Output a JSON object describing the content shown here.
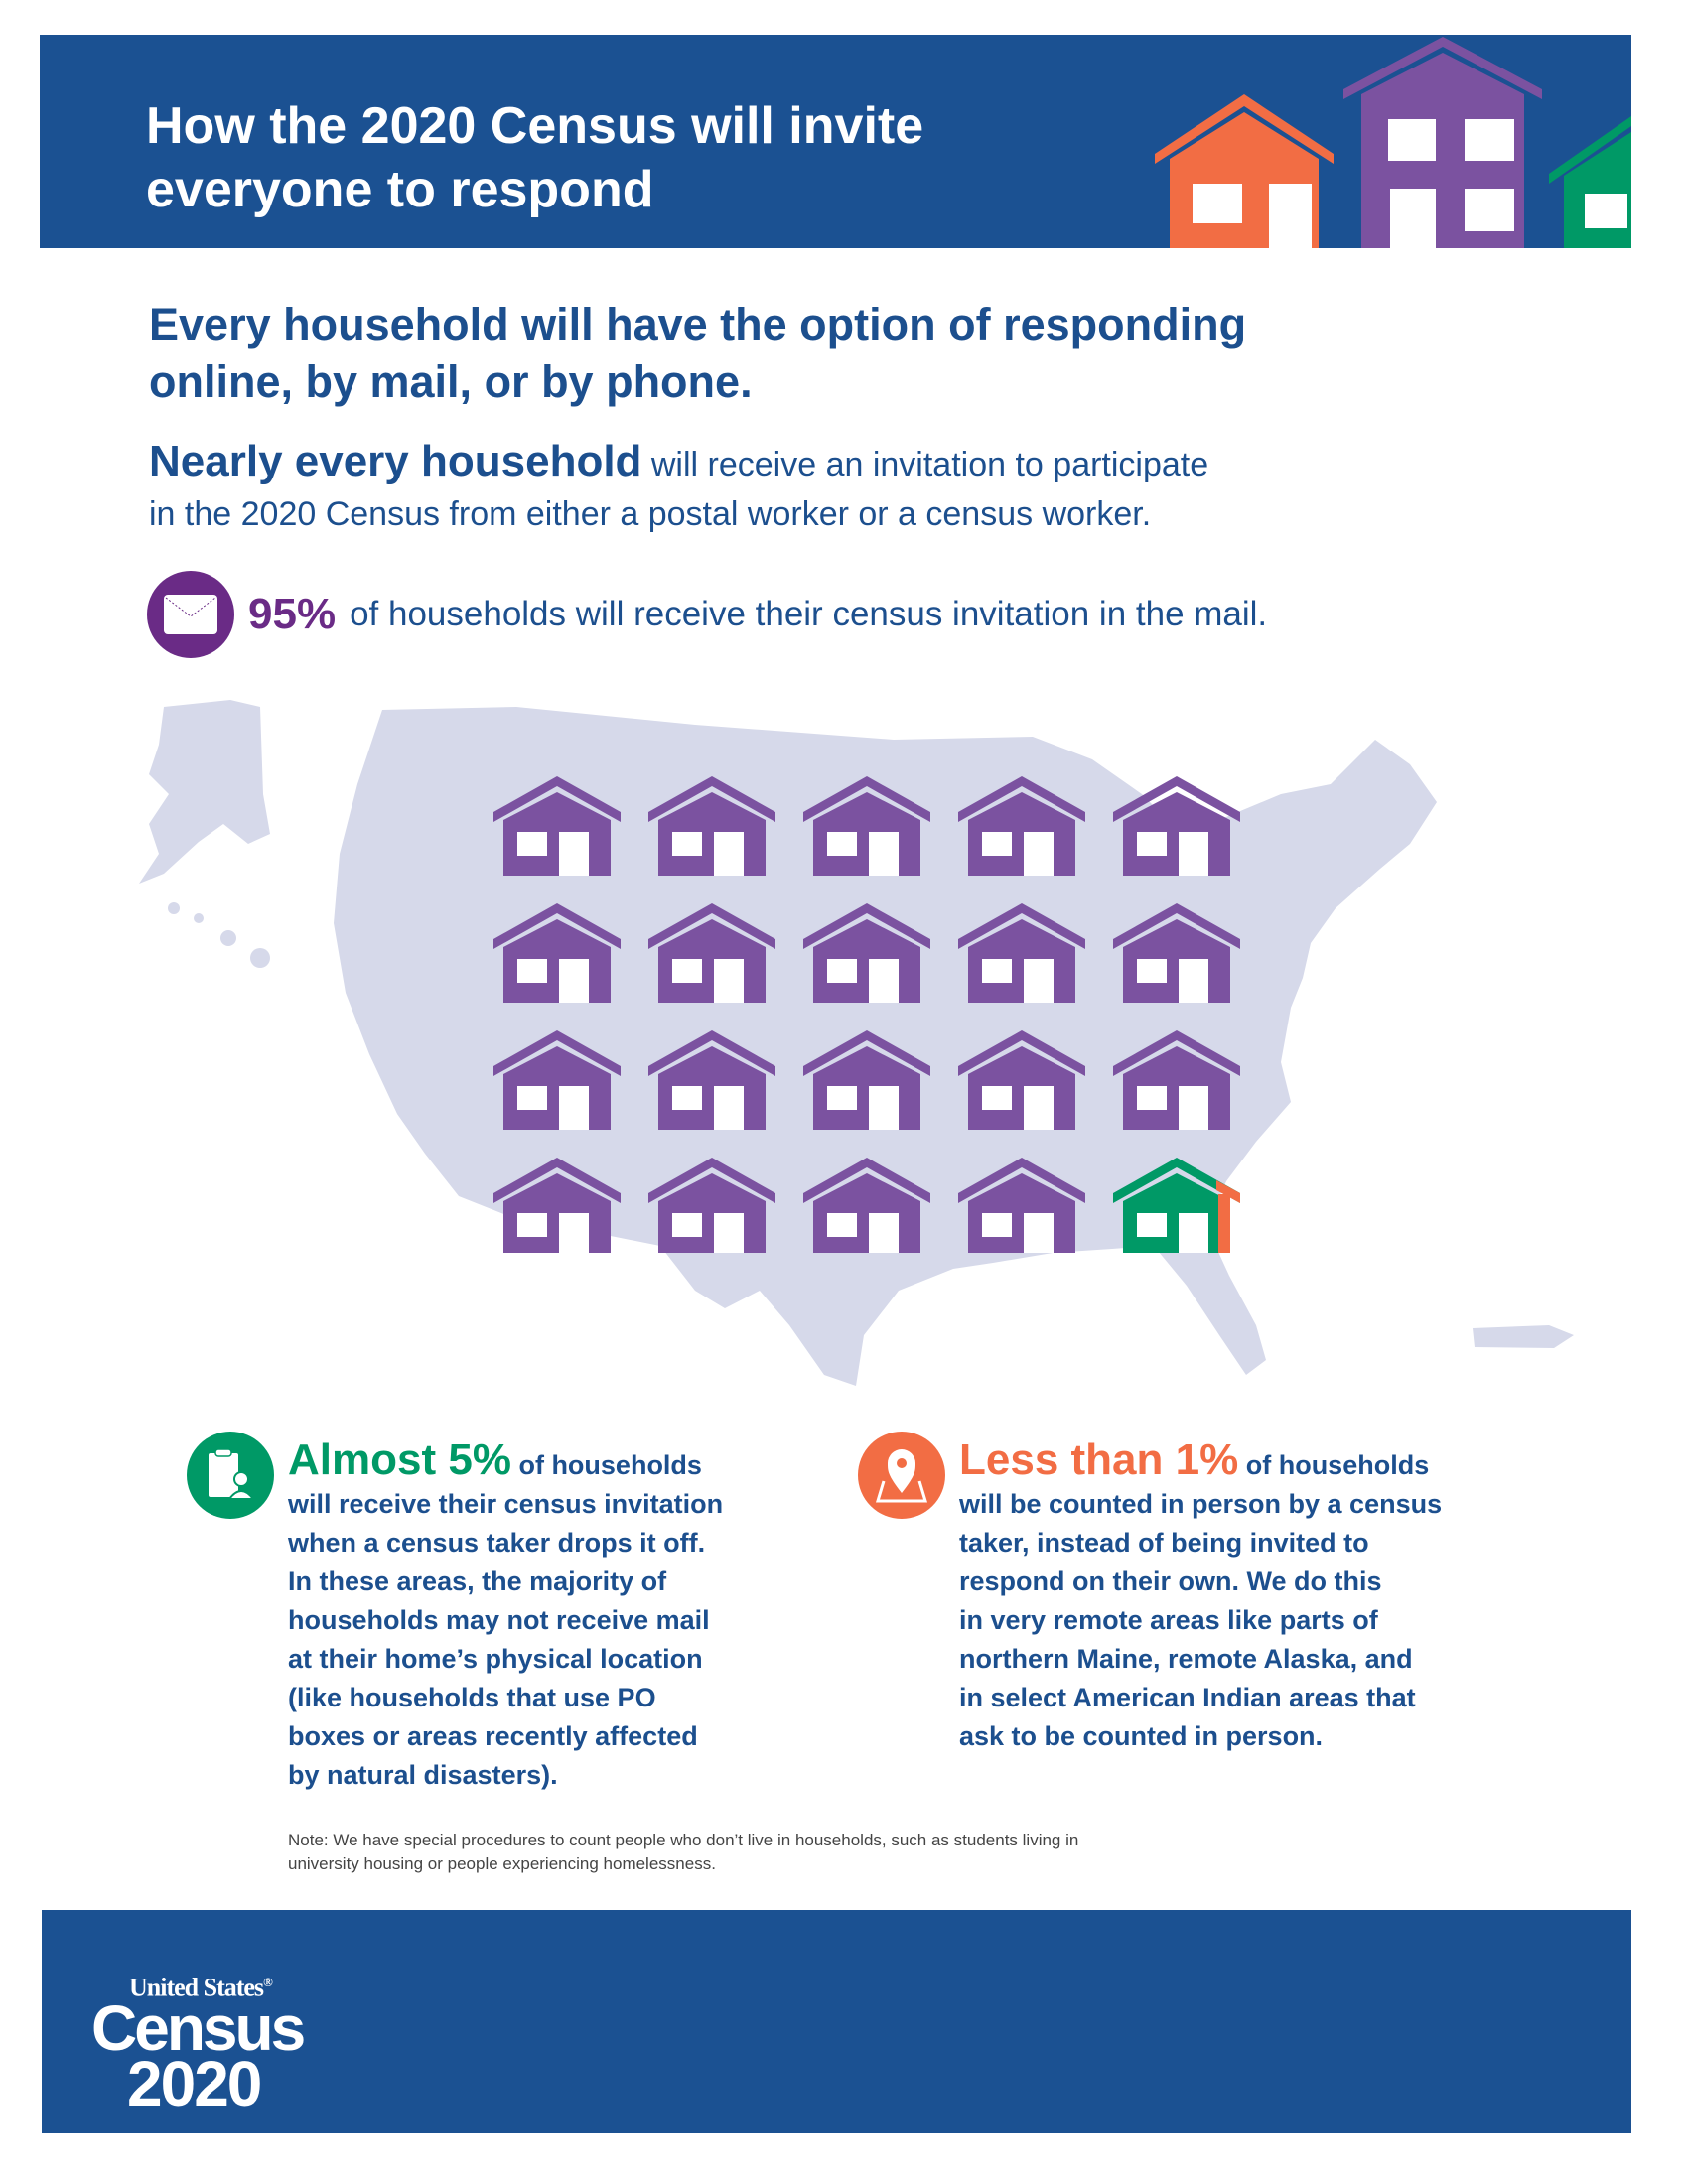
{
  "header": {
    "title_line1": "How the 2020 Census will invite",
    "title_line2": "everyone to respond"
  },
  "lead": {
    "line1": "Every household will have the option of responding",
    "line2": "online, by mail, or by phone."
  },
  "intro": {
    "bold": "Nearly every household",
    "rest_line1": " will receive an invitation to participate",
    "line2": "in the 2020 Census from either a postal worker or a census worker."
  },
  "mail_stat": {
    "icon": "envelope-icon",
    "percent": "95%",
    "text": "of households will receive their census invitation in the mail."
  },
  "house_grid": {
    "rows": 4,
    "columns": 5,
    "mail_houses": 19,
    "dropoff_houses": 1,
    "in_person_sliver": true
  },
  "dropoff": {
    "icon": "clipboard-person-icon",
    "headline": "Almost 5%",
    "headline_suffix": " of households",
    "lines": [
      "will receive their census invitation",
      "when a census taker drops it off.",
      "In these areas, the majority of",
      "households may not receive mail",
      "at their home’s physical location",
      "(like households that use PO",
      "boxes or areas recently affected",
      "by natural disasters)."
    ]
  },
  "in_person": {
    "icon": "map-pin-icon",
    "headline": "Less than 1%",
    "headline_suffix": " of households",
    "lines": [
      "will be counted in person by a census",
      "taker, instead of being invited to",
      "respond on their own. We do this",
      "in very remote areas like parts of",
      "northern Maine, remote Alaska, and",
      "in select American Indian areas that",
      "ask to be counted in person."
    ]
  },
  "note": {
    "line1": "Note: We have special procedures to count people who don’t live in households, such as students living in",
    "line2": "university housing or people experiencing homelessness."
  },
  "footer": {
    "logo_line1": "United States",
    "logo_reg": "®",
    "logo_line2": "Census",
    "logo_line3": "2020"
  },
  "colors": {
    "blue": "#1b5192",
    "purple": "#7b52a0",
    "dark_purple": "#6a2b86",
    "green": "#009966",
    "orange": "#f26d44",
    "map": "#d6d9ea"
  }
}
